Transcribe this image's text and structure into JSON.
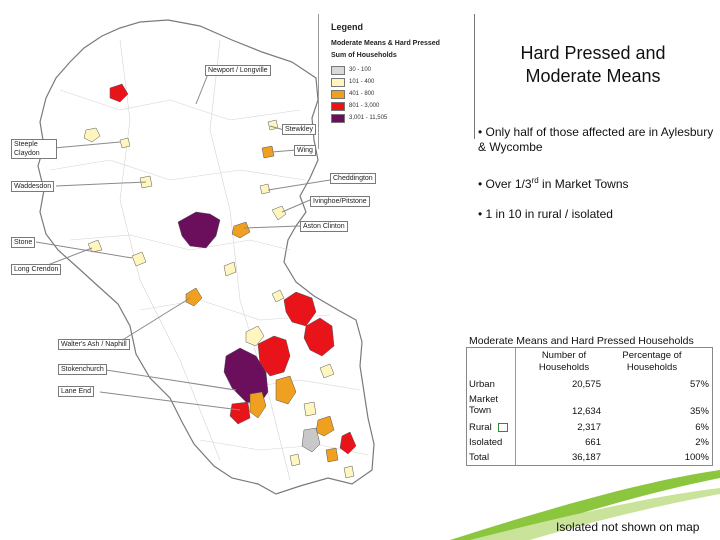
{
  "legend": {
    "title": "Legend",
    "subtitle1": "Moderate Means & Hard Pressed",
    "subtitle2": "Sum of Households",
    "items": [
      {
        "label": "30 - 100",
        "color": "#d9d9d9"
      },
      {
        "label": "101 - 400",
        "color": "#fff6bf"
      },
      {
        "label": "401 - 800",
        "color": "#f0a020"
      },
      {
        "label": "801 - 3,000",
        "color": "#e8141a"
      },
      {
        "label": "3,001 - 11,505",
        "color": "#6b0f5c"
      }
    ]
  },
  "title_line1": "Hard Pressed and",
  "title_line2": "Moderate Means",
  "bullets": [
    {
      "text": "• Only half of those affected are in Aylesbury & Wycombe",
      "sup": "",
      "after": ""
    },
    {
      "text": "• Over 1/3",
      "sup": "rd",
      "after": " in Market Towns"
    },
    {
      "text": "• 1 in 10 in rural / isolated",
      "sup": "",
      "after": ""
    }
  ],
  "map_labels": {
    "newport_longville": "Newport / Longville",
    "steeple_claydon": "Steeple Claydon",
    "stewkley": "Stewkley",
    "wing": "Wing",
    "waddesdon": "Waddesdon",
    "cheddington": "Cheddington",
    "ivinghoe_pitstone": "Ivinghoe/Pitstone",
    "aston_clinton": "Aston Clinton",
    "stone": "Stone",
    "long_crendon": "Long Crendon",
    "walters_ash_naphill": "Walter's Ash / Naphill",
    "stokenchurch": "Stokenchurch",
    "lane_end": "Lane End"
  },
  "colors": {
    "county_outline": "#7a7a7a",
    "grey": "#c8c8c8",
    "cream": "#fff6bf",
    "orange": "#f0a020",
    "red": "#e8141a",
    "purple": "#6b0f5c",
    "green_swoosh": "#8cc63f"
  },
  "table": {
    "title": "Moderate Means and Hard Pressed Households",
    "col1_header": "Number of Households",
    "col2_header": "Percentage of Households",
    "rows": [
      {
        "label": "Urban",
        "count": "20,575",
        "pct": "57%"
      },
      {
        "label": "Market Town",
        "count": "12,634",
        "pct": "35%"
      },
      {
        "label": "Rural",
        "count": "2,317",
        "pct": "6%"
      },
      {
        "label": "Isolated",
        "count": "661",
        "pct": "2%"
      },
      {
        "label": "Total",
        "count": "36,187",
        "pct": "100%"
      }
    ]
  },
  "footer": "Isolated not shown on map"
}
